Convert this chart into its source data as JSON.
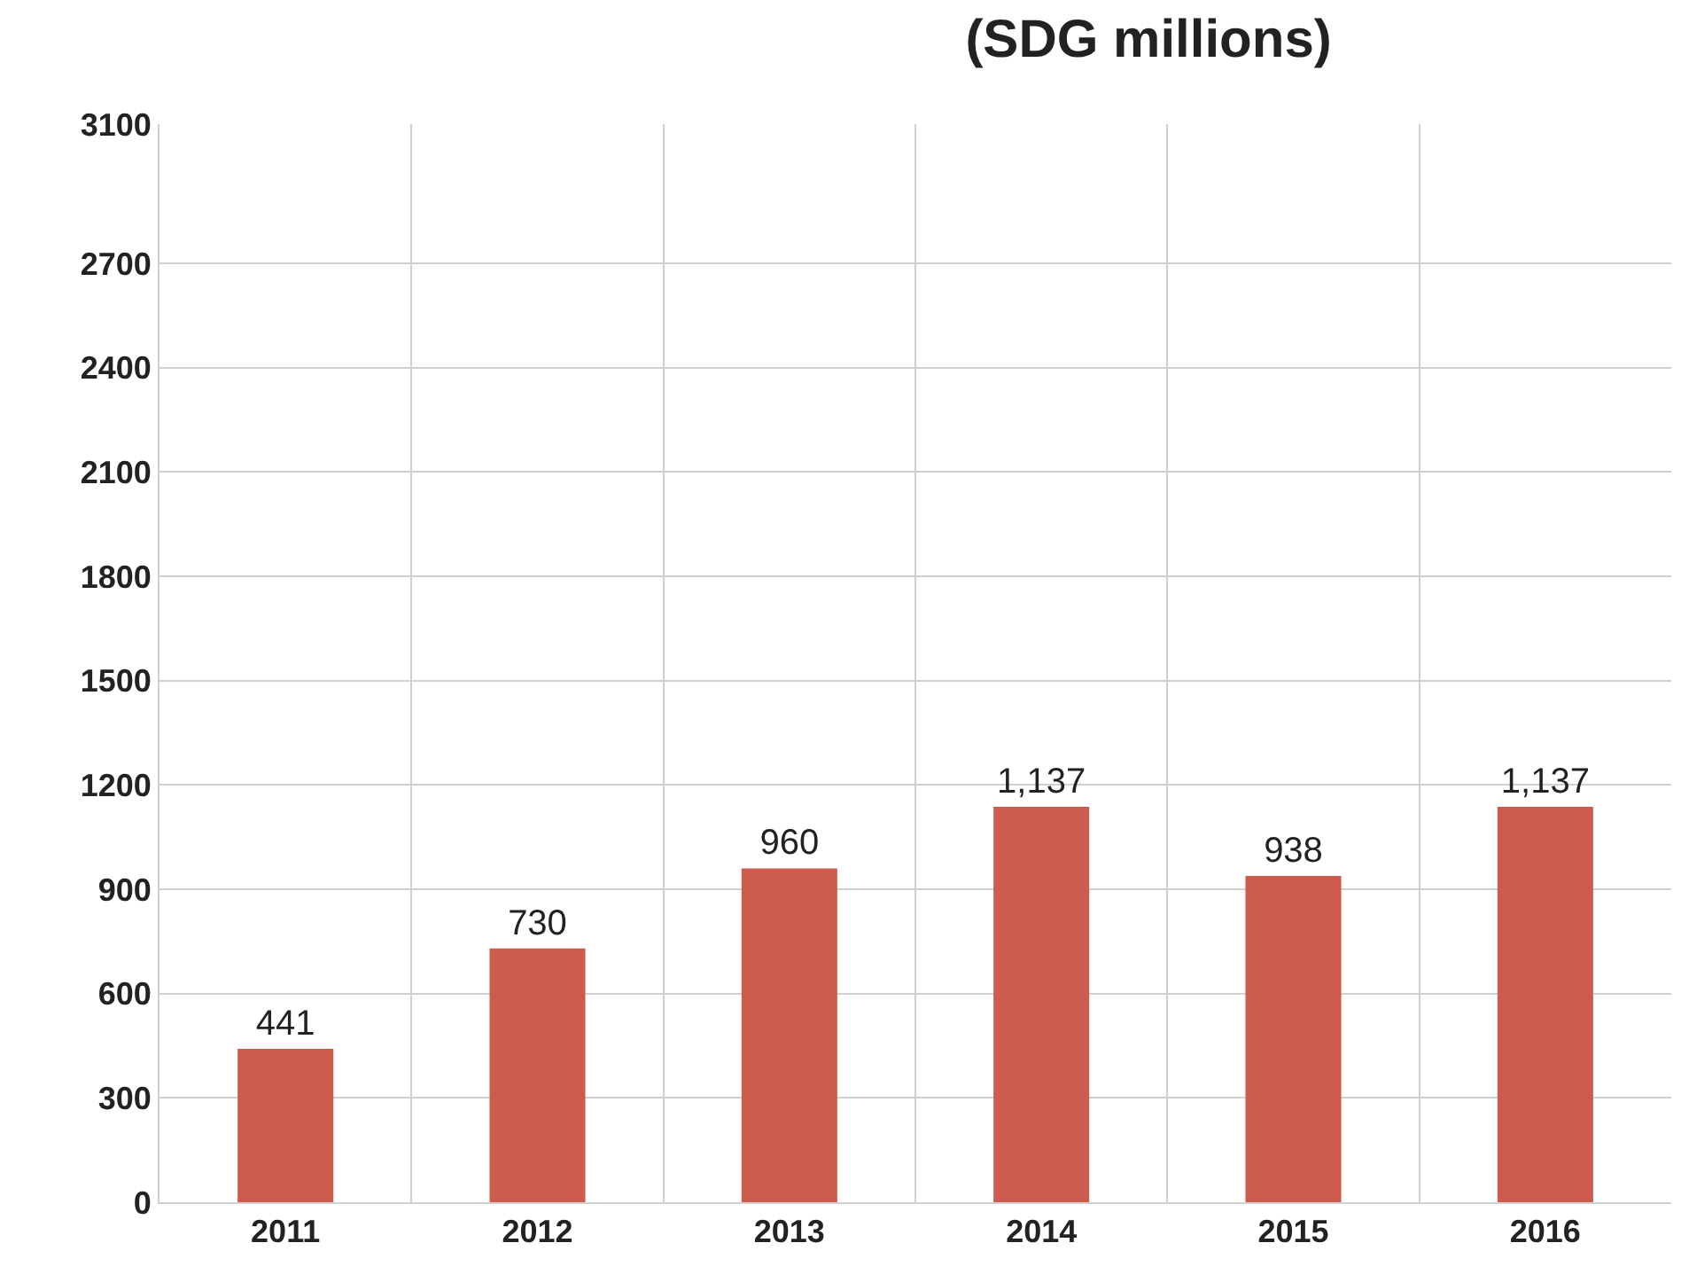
{
  "chart_data": {
    "type": "bar",
    "title": "(SDG millions)",
    "categories": [
      "2011",
      "2012",
      "2013",
      "2014",
      "2015",
      "2016"
    ],
    "values": [
      441,
      730,
      960,
      1137,
      938,
      1137
    ],
    "value_labels": [
      "441",
      "730",
      "960",
      "1,137",
      "938",
      "1,137"
    ],
    "color": "#cd5c4e",
    "ylim": [
      0,
      3100
    ],
    "yticks": [
      0,
      300,
      600,
      900,
      1200,
      1500,
      1800,
      2100,
      2400,
      2700,
      3100
    ],
    "grid": true,
    "legend": false
  }
}
